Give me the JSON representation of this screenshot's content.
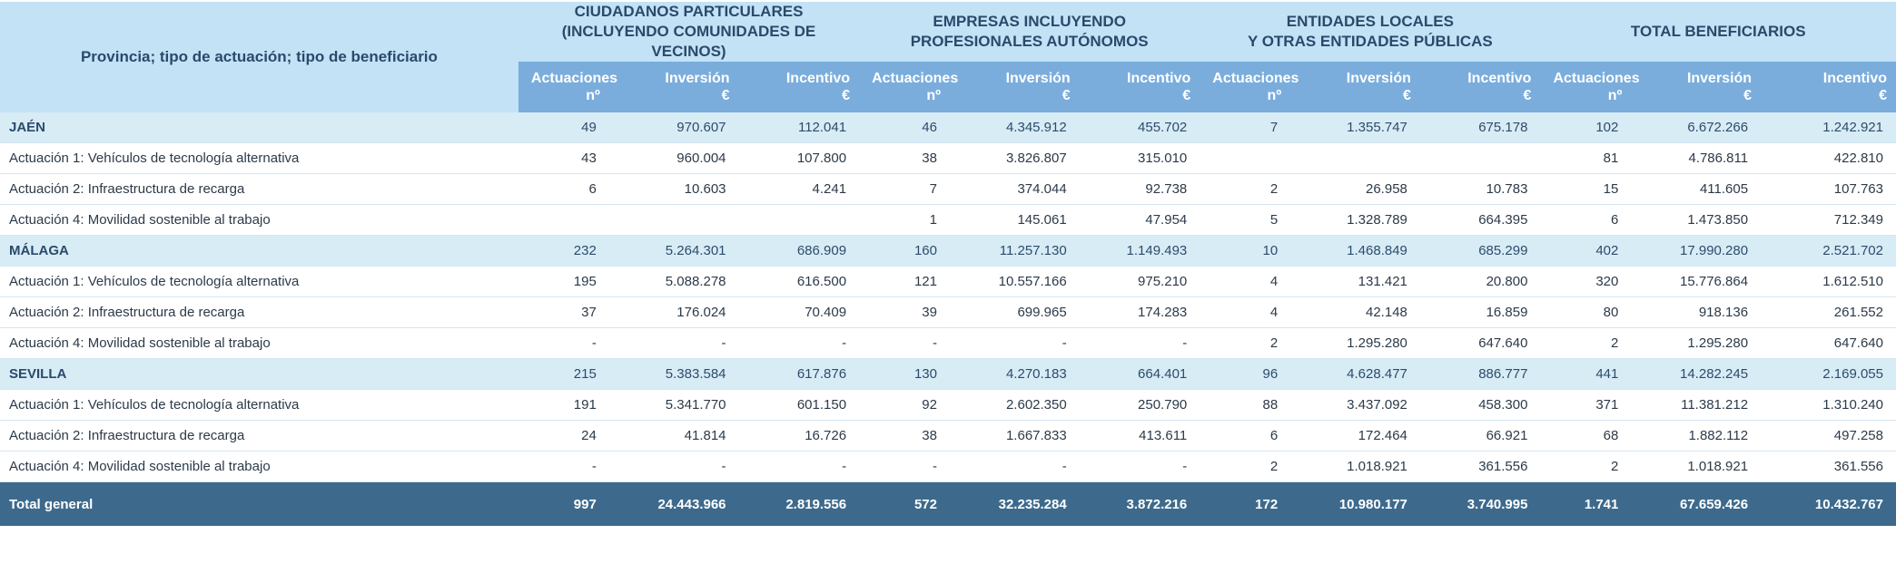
{
  "header": {
    "first_col": "Provincia; tipo de actuación; tipo de beneficiario",
    "groups": [
      {
        "line1": "CIUDADANOS PARTICULARES",
        "line2": "(INCLUYENDO COMUNIDADES DE VECINOS)"
      },
      {
        "line1": "EMPRESAS INCLUYENDO",
        "line2": "PROFESIONALES AUTÓNOMOS"
      },
      {
        "line1": "ENTIDADES LOCALES",
        "line2": "Y OTRAS ENTIDADES PÚBLICAS"
      },
      {
        "line1": "TOTAL BENEFICIARIOS",
        "line2": ""
      }
    ],
    "sub": [
      {
        "l1": "Actuaciones",
        "l2": "nº"
      },
      {
        "l1": "Inversión",
        "l2": "€"
      },
      {
        "l1": "Incentivo",
        "l2": "€"
      }
    ]
  },
  "rows": [
    {
      "type": "prov",
      "label": "JAÉN",
      "v": [
        "49",
        "970.607",
        "112.041",
        "46",
        "4.345.912",
        "455.702",
        "7",
        "1.355.747",
        "675.178",
        "102",
        "6.672.266",
        "1.242.921"
      ]
    },
    {
      "type": "act",
      "label": "Actuación 1: Vehículos de tecnología alternativa",
      "v": [
        "43",
        "960.004",
        "107.800",
        "38",
        "3.826.807",
        "315.010",
        "",
        "",
        "",
        "81",
        "4.786.811",
        "422.810"
      ]
    },
    {
      "type": "act",
      "label": "Actuación 2: Infraestructura de recarga",
      "v": [
        "6",
        "10.603",
        "4.241",
        "7",
        "374.044",
        "92.738",
        "2",
        "26.958",
        "10.783",
        "15",
        "411.605",
        "107.763"
      ]
    },
    {
      "type": "act",
      "label": "Actuación 4: Movilidad sostenible al trabajo",
      "v": [
        "",
        "",
        "",
        "1",
        "145.061",
        "47.954",
        "5",
        "1.328.789",
        "664.395",
        "6",
        "1.473.850",
        "712.349"
      ]
    },
    {
      "type": "prov",
      "label": "MÁLAGA",
      "v": [
        "232",
        "5.264.301",
        "686.909",
        "160",
        "11.257.130",
        "1.149.493",
        "10",
        "1.468.849",
        "685.299",
        "402",
        "17.990.280",
        "2.521.702"
      ]
    },
    {
      "type": "act",
      "label": "Actuación 1: Vehículos de tecnología alternativa",
      "v": [
        "195",
        "5.088.278",
        "616.500",
        "121",
        "10.557.166",
        "975.210",
        "4",
        "131.421",
        "20.800",
        "320",
        "15.776.864",
        "1.612.510"
      ]
    },
    {
      "type": "act",
      "label": "Actuación 2: Infraestructura de recarga",
      "v": [
        "37",
        "176.024",
        "70.409",
        "39",
        "699.965",
        "174.283",
        "4",
        "42.148",
        "16.859",
        "80",
        "918.136",
        "261.552"
      ]
    },
    {
      "type": "act",
      "label": "Actuación 4: Movilidad sostenible al trabajo",
      "v": [
        "-",
        "-",
        "-",
        "-",
        "-",
        "-",
        "2",
        "1.295.280",
        "647.640",
        "2",
        "1.295.280",
        "647.640"
      ]
    },
    {
      "type": "prov",
      "label": "SEVILLA",
      "v": [
        "215",
        "5.383.584",
        "617.876",
        "130",
        "4.270.183",
        "664.401",
        "96",
        "4.628.477",
        "886.777",
        "441",
        "14.282.245",
        "2.169.055"
      ]
    },
    {
      "type": "act",
      "label": "Actuación 1: Vehículos de tecnología alternativa",
      "v": [
        "191",
        "5.341.770",
        "601.150",
        "92",
        "2.602.350",
        "250.790",
        "88",
        "3.437.092",
        "458.300",
        "371",
        "11.381.212",
        "1.310.240"
      ]
    },
    {
      "type": "act",
      "label": "Actuación 2: Infraestructura de recarga",
      "v": [
        "24",
        "41.814",
        "16.726",
        "38",
        "1.667.833",
        "413.611",
        "6",
        "172.464",
        "66.921",
        "68",
        "1.882.112",
        "497.258"
      ]
    },
    {
      "type": "act",
      "label": "Actuación 4: Movilidad sostenible al trabajo",
      "v": [
        "-",
        "-",
        "-",
        "-",
        "-",
        "-",
        "2",
        "1.018.921",
        "361.556",
        "2",
        "1.018.921",
        "361.556"
      ]
    }
  ],
  "total": {
    "label": "Total general",
    "v": [
      "997",
      "24.443.966",
      "2.819.556",
      "572",
      "32.235.284",
      "3.872.216",
      "172",
      "10.980.177",
      "3.740.995",
      "1.741",
      "67.659.426",
      "10.432.767"
    ]
  }
}
